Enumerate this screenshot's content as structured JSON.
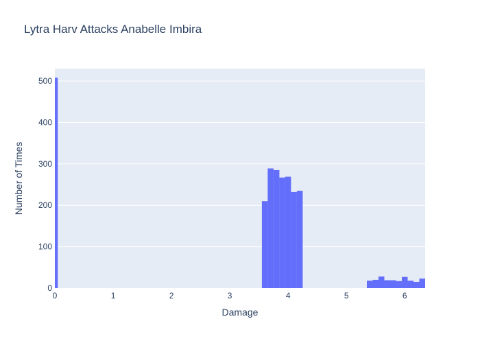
{
  "chart_data": {
    "type": "bar",
    "title": "Lytra Harv Attacks Anabelle Imbira",
    "xlabel": "Damage",
    "ylabel": "Number of Times",
    "xlim": [
      0,
      6.35
    ],
    "ylim": [
      0,
      530
    ],
    "grid": true,
    "legend": "none",
    "x_ticks": [
      0,
      1,
      2,
      3,
      4,
      5,
      6
    ],
    "y_ticks": [
      0,
      100,
      200,
      300,
      400,
      500
    ],
    "bin_width": 0.1,
    "bars": [
      {
        "x0": 0.0,
        "x1": 0.05,
        "value": 508
      },
      {
        "x0": 3.55,
        "x1": 3.65,
        "value": 210
      },
      {
        "x0": 3.65,
        "x1": 3.75,
        "value": 289
      },
      {
        "x0": 3.75,
        "x1": 3.85,
        "value": 285
      },
      {
        "x0": 3.85,
        "x1": 3.95,
        "value": 267
      },
      {
        "x0": 3.95,
        "x1": 4.05,
        "value": 269
      },
      {
        "x0": 4.05,
        "x1": 4.15,
        "value": 232
      },
      {
        "x0": 4.15,
        "x1": 4.25,
        "value": 235
      },
      {
        "x0": 5.35,
        "x1": 5.45,
        "value": 18
      },
      {
        "x0": 5.45,
        "x1": 5.55,
        "value": 20
      },
      {
        "x0": 5.55,
        "x1": 5.65,
        "value": 28
      },
      {
        "x0": 5.65,
        "x1": 5.75,
        "value": 19
      },
      {
        "x0": 5.75,
        "x1": 5.85,
        "value": 19
      },
      {
        "x0": 5.85,
        "x1": 5.95,
        "value": 17
      },
      {
        "x0": 5.95,
        "x1": 6.05,
        "value": 27
      },
      {
        "x0": 6.05,
        "x1": 6.15,
        "value": 18
      },
      {
        "x0": 6.15,
        "x1": 6.25,
        "value": 15
      },
      {
        "x0": 6.25,
        "x1": 6.35,
        "value": 23
      }
    ]
  },
  "colors": {
    "bar": "#636efa",
    "plot_bg": "#e5ecf6",
    "grid": "#ffffff",
    "text": "#2a3f5f"
  }
}
